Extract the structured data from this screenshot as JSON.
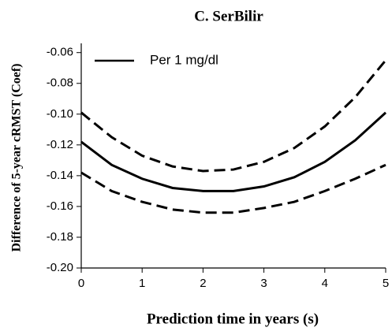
{
  "chart_data": {
    "type": "line",
    "title": "C. SerBilir",
    "xlabel": "Prediction time in years (s)",
    "ylabel": "Difference of 5-year cRMST (Coef)",
    "x": [
      0,
      0.5,
      1,
      1.5,
      2,
      2.5,
      3,
      3.5,
      4,
      4.5,
      5
    ],
    "series": [
      {
        "name": "Per 1 mg/dl",
        "color": "#000000",
        "dash": false,
        "values": [
          -0.118,
          -0.133,
          -0.142,
          -0.148,
          -0.15,
          -0.15,
          -0.147,
          -0.141,
          -0.131,
          -0.117,
          -0.099
        ]
      },
      {
        "color": "#000000",
        "dash": true,
        "values": [
          -0.099,
          -0.115,
          -0.127,
          -0.134,
          -0.137,
          -0.136,
          -0.131,
          -0.122,
          -0.108,
          -0.089,
          -0.065
        ]
      },
      {
        "color": "#000000",
        "dash": true,
        "values": [
          -0.138,
          -0.15,
          -0.157,
          -0.162,
          -0.164,
          -0.164,
          -0.161,
          -0.157,
          -0.15,
          -0.142,
          -0.133
        ]
      }
    ],
    "xlim": [
      0,
      5
    ],
    "xticks": [
      0,
      1,
      2,
      3,
      4,
      5
    ],
    "ylim": [
      -0.2,
      -0.054
    ],
    "yticks": [
      {
        "value": -0.2,
        "label": "-0.20"
      },
      -0.18,
      -0.16,
      -0.14,
      -0.12,
      {
        "value": -0.1,
        "label": "-0.10"
      },
      -0.08,
      -0.06
    ],
    "grid": false,
    "legend": "upper left"
  }
}
